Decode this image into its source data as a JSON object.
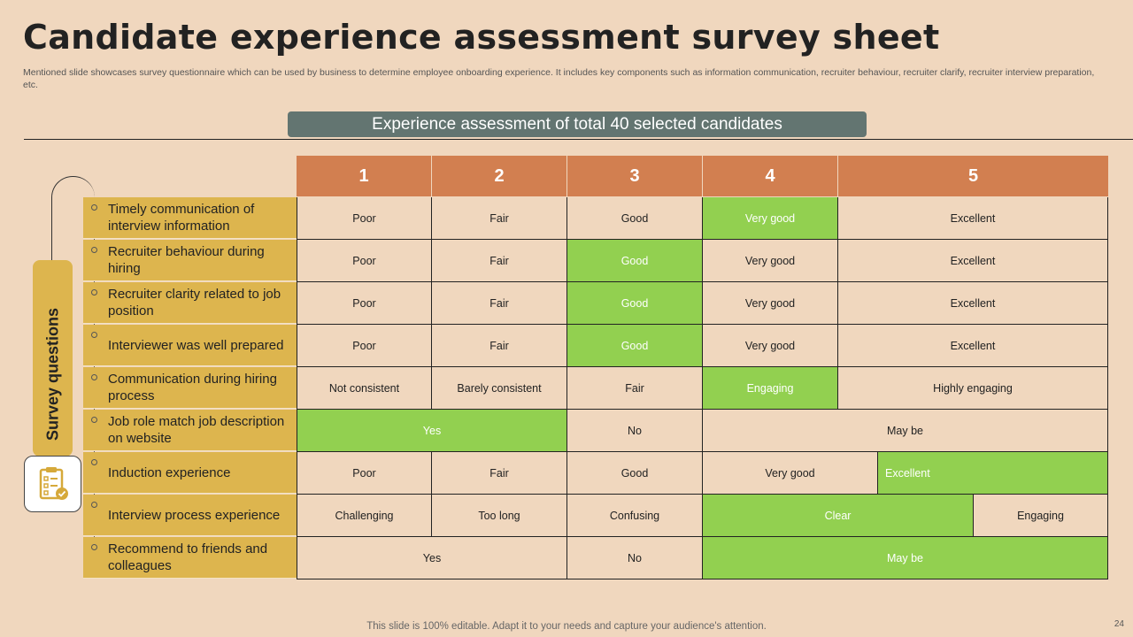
{
  "title": "Candidate experience assessment survey sheet",
  "subtitle": "Mentioned slide showcases survey questionnaire which can be used by business to determine employee onboarding experience. It includes key components such as information communication, recruiter behaviour, recruiter clarify, recruiter interview preparation, etc.",
  "banner": "Experience assessment of total 40 selected candidates",
  "side_label": "Survey questions",
  "side_icon": "clipboard-checklist-icon",
  "columns": [
    "1",
    "2",
    "3",
    "4",
    "5"
  ],
  "questions": [
    "Timely communication of interview information",
    "Recruiter behaviour during hiring",
    "Recruiter clarity related to job position",
    "Interviewer was well prepared",
    "Communication during hiring process",
    "Job role match job description on website",
    "Induction experience",
    "Interview process experience",
    "Recommend to friends and colleagues"
  ],
  "rows": [
    [
      "Poor",
      "Fair",
      "Good",
      "Very good",
      "Excellent"
    ],
    [
      "Poor",
      "Fair",
      "Good",
      "Very good",
      "Excellent"
    ],
    [
      "Poor",
      "Fair",
      "Good",
      "Very good",
      "Excellent"
    ],
    [
      "Poor",
      "Fair",
      "Good",
      "Very good",
      "Excellent"
    ],
    [
      "Not consistent",
      "Barely consistent",
      "Fair",
      "Engaging",
      "Highly engaging"
    ],
    [
      "Yes",
      "No",
      "May be"
    ],
    [
      "Poor",
      "Fair",
      "Good",
      "Very good",
      "Excellent"
    ],
    [
      "Challenging",
      "Too long",
      "Confusing",
      "Clear",
      "Engaging"
    ],
    [
      "Yes",
      "No",
      "May be"
    ]
  ],
  "selected": [
    3,
    2,
    2,
    2,
    3,
    0,
    4,
    3,
    2
  ],
  "colors": {
    "background": "#F0D7BE",
    "header": "#D27F50",
    "highlight": "#92D050",
    "question_bg": "#DDB54E",
    "banner": "#637571"
  },
  "footer": "This slide is 100% editable. Adapt it to your needs and capture your audience's attention.",
  "page_number": "24"
}
